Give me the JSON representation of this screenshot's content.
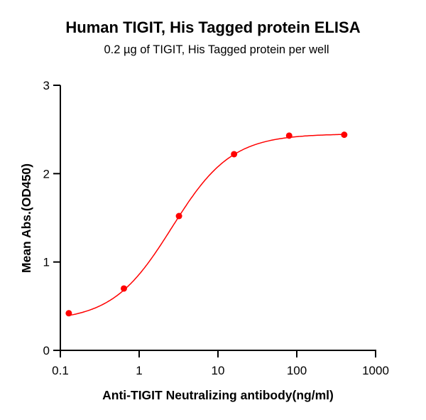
{
  "header": {
    "title": "Human TIGIT, His Tagged protein ELISA",
    "subtitle": "0.2 µg of TIGIT, His Tagged protein per well"
  },
  "axes": {
    "x": {
      "label": "Anti-TIGIT Neutralizing antibody(ng/ml)",
      "ticks": [
        "0.1",
        "1",
        "10",
        "100",
        "1000"
      ]
    },
    "y": {
      "label": "Mean Abs.(OD450)",
      "ticks": [
        "0",
        "1",
        "2",
        "3"
      ]
    }
  },
  "colors": {
    "series": "#ff0000",
    "axis": "#000000"
  },
  "chart_data": {
    "type": "scatter",
    "title": "Human TIGIT, His Tagged protein ELISA",
    "subtitle": "0.2 µg of TIGIT, His Tagged protein per well",
    "xlabel": "Anti-TIGIT Neutralizing antibody(ng/ml)",
    "ylabel": "Mean Abs.(OD450)",
    "xscale": "log",
    "xlim": [
      0.1,
      1000
    ],
    "ylim": [
      0,
      3
    ],
    "xticks": [
      0.1,
      1,
      10,
      100,
      1000
    ],
    "yticks": [
      0,
      1,
      2,
      3
    ],
    "grid": false,
    "legend": null,
    "fit": "sigmoidal 4PL curve",
    "series": [
      {
        "name": "Anti-TIGIT Neutralizing antibody",
        "color": "#ff0000",
        "x": [
          0.128,
          0.64,
          3.2,
          16,
          80,
          400
        ],
        "values": [
          0.42,
          0.7,
          1.52,
          2.22,
          2.43,
          2.44
        ]
      }
    ]
  }
}
